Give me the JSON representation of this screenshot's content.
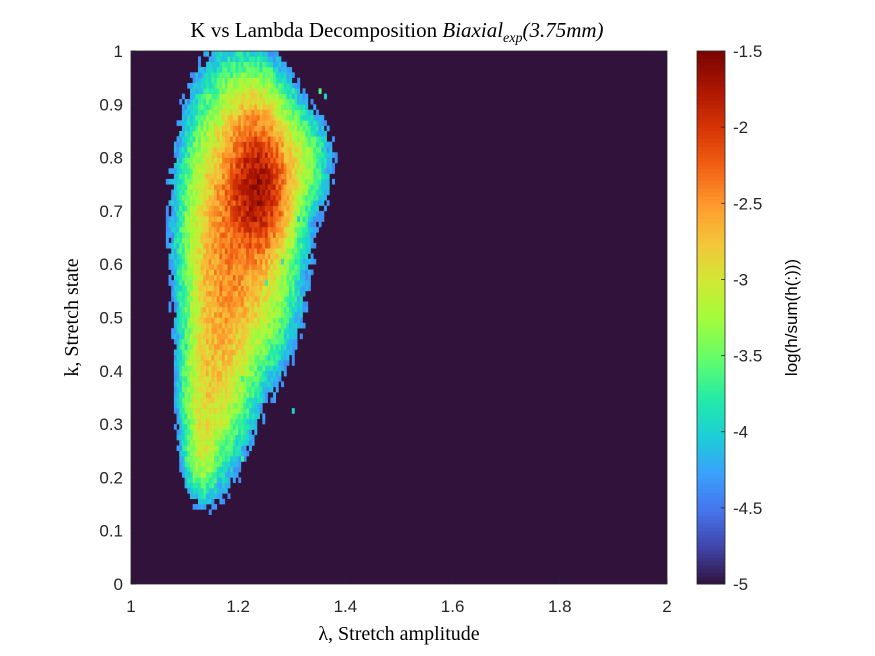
{
  "chart_data": {
    "type": "heatmap",
    "title": {
      "prefix": "K vs Lambda Decomposition ",
      "math_main": "Biaxial",
      "math_sub": "exp",
      "math_paren": "(3.75mm)"
    },
    "xlabel": "λ, Stretch amplitude",
    "ylabel": "k, Stretch state",
    "xlim": [
      1,
      2
    ],
    "ylim": [
      0,
      1
    ],
    "xticks": [
      1,
      1.2,
      1.4,
      1.6,
      1.8,
      2
    ],
    "xtick_labels": [
      "1",
      "1.2",
      "1.4",
      "1.6",
      "1.8",
      "2"
    ],
    "yticks": [
      0,
      0.1,
      0.2,
      0.3,
      0.4,
      0.5,
      0.6,
      0.7,
      0.8,
      0.9,
      1
    ],
    "ytick_labels": [
      "0",
      "0.1",
      "0.2",
      "0.3",
      "0.4",
      "0.5",
      "0.6",
      "0.7",
      "0.8",
      "0.9",
      "1"
    ],
    "grid": false,
    "background_value": -5,
    "colorbar": {
      "label": "log(h/sum(h(:)))",
      "limits": [
        -5,
        -1.5
      ],
      "ticks": [
        -5,
        -4.5,
        -4,
        -3.5,
        -3,
        -2.5,
        -2,
        -1.5
      ],
      "tick_labels": [
        "-5",
        "-4.5",
        "-4",
        "-3.5",
        "-3",
        "-2.5",
        "-2",
        "-1.5"
      ],
      "colormap": "turbo"
    },
    "density_components": [
      {
        "lambda": 1.235,
        "k": 0.745,
        "sigma_lambda": 0.026,
        "sigma_k": 0.055,
        "peak_log_density": -1.75
      },
      {
        "lambda": 1.205,
        "k": 0.68,
        "sigma_lambda": 0.045,
        "sigma_k": 0.12,
        "peak_log_density": -2.45
      },
      {
        "lambda": 1.17,
        "k": 0.52,
        "sigma_lambda": 0.03,
        "sigma_k": 0.12,
        "peak_log_density": -2.75
      },
      {
        "lambda": 1.14,
        "k": 0.36,
        "sigma_lambda": 0.022,
        "sigma_k": 0.08,
        "peak_log_density": -3.05
      },
      {
        "lambda": 1.23,
        "k": 0.87,
        "sigma_lambda": 0.028,
        "sigma_k": 0.045,
        "peak_log_density": -2.95
      },
      {
        "lambda": 1.29,
        "k": 0.79,
        "sigma_lambda": 0.035,
        "sigma_k": 0.05,
        "peak_log_density": -3.05
      },
      {
        "lambda": 1.13,
        "k": 0.25,
        "sigma_lambda": 0.015,
        "sigma_k": 0.04,
        "peak_log_density": -3.3
      }
    ],
    "support_threshold": -4.4,
    "scattered_points": [
      {
        "lambda": 1.3,
        "k": 0.325,
        "log_density": -4.0
      },
      {
        "lambda": 1.205,
        "k": 0.38,
        "log_density": -3.7
      },
      {
        "lambda": 1.225,
        "k": 0.295,
        "log_density": -4.0
      },
      {
        "lambda": 1.255,
        "k": 0.43,
        "log_density": -3.4
      },
      {
        "lambda": 1.265,
        "k": 0.41,
        "log_density": -3.6
      },
      {
        "lambda": 1.21,
        "k": 0.23,
        "log_density": -3.7
      },
      {
        "lambda": 1.1,
        "k": 0.445,
        "log_density": -3.9
      },
      {
        "lambda": 1.095,
        "k": 0.49,
        "log_density": -3.8
      },
      {
        "lambda": 1.255,
        "k": 0.56,
        "log_density": -3.7
      },
      {
        "lambda": 1.36,
        "k": 0.915,
        "log_density": -4.0
      },
      {
        "lambda": 1.35,
        "k": 0.92,
        "log_density": -3.6
      },
      {
        "lambda": 1.305,
        "k": 0.92,
        "log_density": -3.7
      },
      {
        "lambda": 1.19,
        "k": 0.955,
        "log_density": -3.8
      },
      {
        "lambda": 1.285,
        "k": 0.6,
        "log_density": -3.8
      },
      {
        "lambda": 1.31,
        "k": 0.68,
        "log_density": -4.0
      }
    ]
  }
}
